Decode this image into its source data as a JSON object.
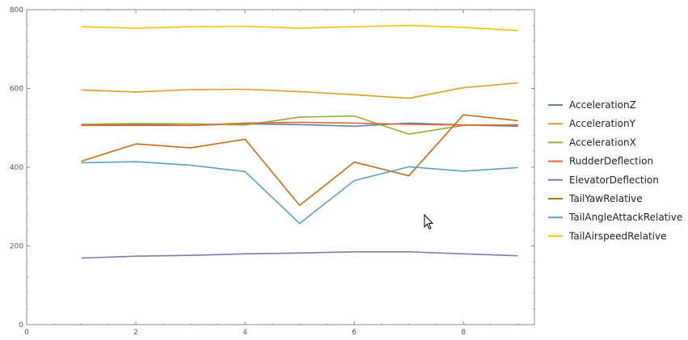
{
  "chart_data": {
    "type": "line",
    "title": "",
    "xlabel": "",
    "ylabel": "",
    "xlim": [
      0,
      9.3
    ],
    "ylim": [
      0,
      800
    ],
    "x_ticks": [
      0,
      2,
      4,
      6,
      8
    ],
    "y_ticks": [
      0,
      200,
      400,
      600,
      800
    ],
    "x_tick_labels": [
      "0",
      "2",
      "4",
      "6",
      "8"
    ],
    "y_tick_labels": [
      "0",
      "200",
      "400",
      "600",
      "800"
    ],
    "grid": false,
    "legend_position": "right",
    "x": [
      1,
      2,
      3,
      4,
      5,
      6,
      7,
      8,
      9
    ],
    "series": [
      {
        "name": "AccelerationZ",
        "color": "#5E81B5",
        "values": [
          507,
          508,
          506,
          510,
          508,
          504,
          512,
          507,
          504
        ]
      },
      {
        "name": "AccelerationY",
        "color": "#E19C24",
        "values": [
          596,
          591,
          597,
          598,
          592,
          584,
          575,
          602,
          614
        ]
      },
      {
        "name": "AccelerationX",
        "color": "#8FB032",
        "values": [
          509,
          511,
          510,
          507,
          527,
          530,
          484,
          506,
          508
        ]
      },
      {
        "name": "RudderDeflection",
        "color": "#EB6235",
        "values": [
          506,
          506,
          506,
          512,
          514,
          512,
          509,
          507,
          507
        ]
      },
      {
        "name": "ElevatorDeflection",
        "color": "#8778B3",
        "values": [
          169,
          174,
          176,
          180,
          182,
          185,
          185,
          180,
          175
        ]
      },
      {
        "name": "TailYawRelative",
        "color": "#C56E1A",
        "values": [
          415,
          459,
          449,
          471,
          303,
          413,
          378,
          533,
          518
        ]
      },
      {
        "name": "TailAngleAttackRelative",
        "color": "#5D9EC7",
        "values": [
          411,
          414,
          405,
          389,
          257,
          366,
          401,
          390,
          399
        ]
      },
      {
        "name": "TailAirspeedRelative",
        "color": "#FFBF00",
        "values": [
          757,
          753,
          757,
          758,
          753,
          757,
          760,
          755,
          747
        ]
      }
    ]
  }
}
